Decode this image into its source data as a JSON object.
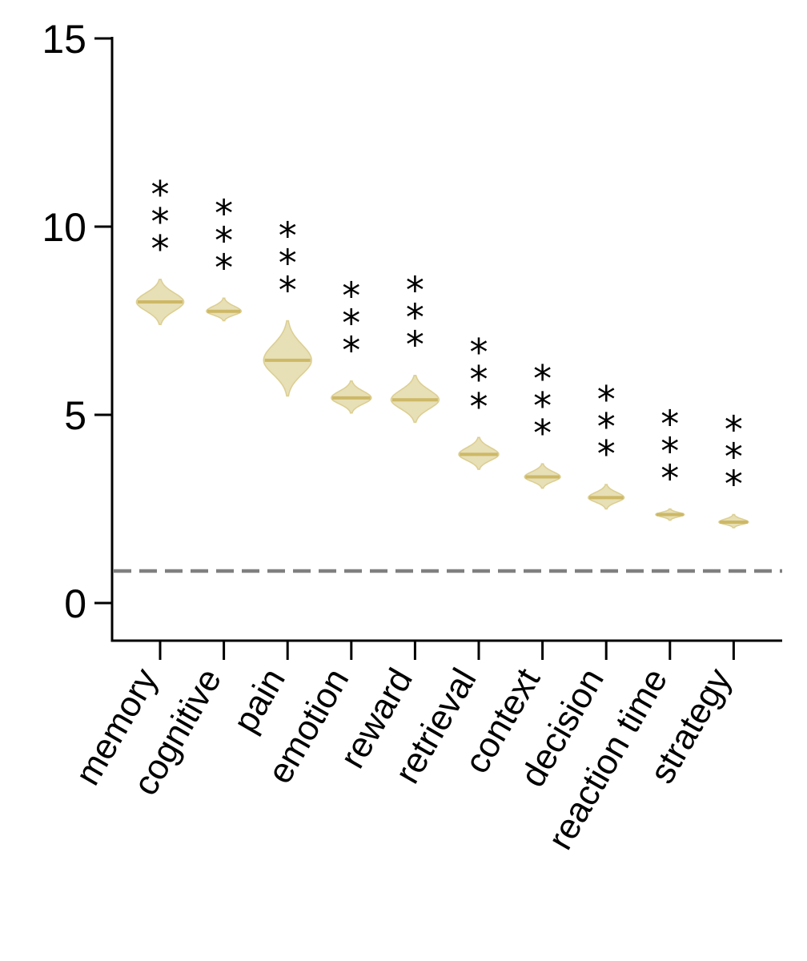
{
  "chart_data": {
    "type": "violin",
    "title": "",
    "xlabel": "",
    "ylabel": "",
    "ylim": [
      -1,
      15
    ],
    "yticks": [
      0,
      5,
      10,
      15
    ],
    "grid": false,
    "categories": [
      "memory",
      "cognitive",
      "pain",
      "emotion",
      "reward",
      "retrieval",
      "context",
      "decision",
      "reaction time",
      "strategy"
    ],
    "series": [
      {
        "values": [
          8.0,
          7.75,
          6.45,
          5.45,
          5.4,
          3.95,
          3.35,
          2.8,
          2.35,
          2.15
        ],
        "min": [
          7.4,
          7.5,
          5.5,
          5.05,
          4.8,
          3.55,
          3.05,
          2.5,
          2.2,
          2.0
        ],
        "max": [
          8.6,
          8.1,
          7.5,
          5.9,
          6.05,
          4.4,
          3.7,
          3.15,
          2.5,
          2.35
        ],
        "color": "#d4c47a"
      }
    ],
    "significance": [
      "***",
      "***",
      "***",
      "***",
      "***",
      "***",
      "***",
      "***",
      "***",
      "***"
    ],
    "reference_line": {
      "y": 0.85,
      "style": "dashed",
      "color": "#808080"
    }
  }
}
